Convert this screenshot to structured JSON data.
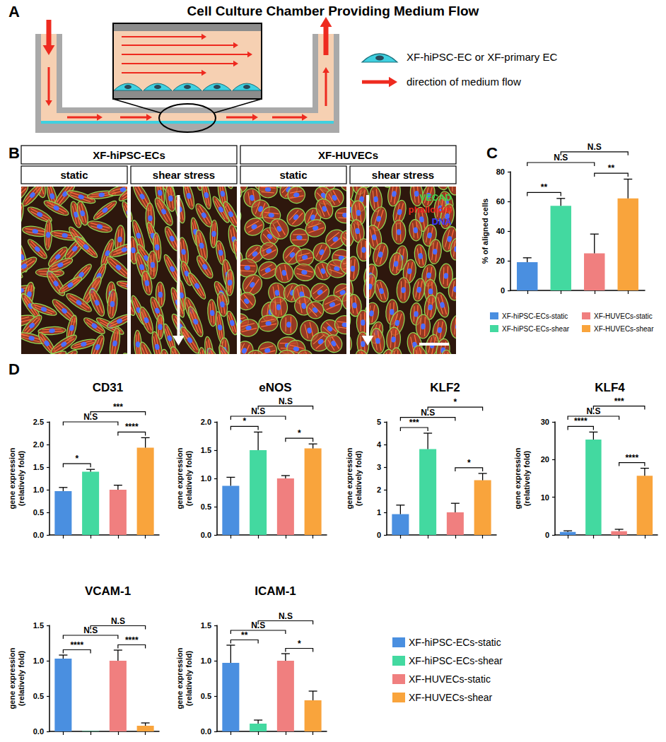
{
  "panels": {
    "A": {
      "label": "A",
      "title": "Cell Culture Chamber Providing Medium Flow",
      "key": [
        "XF-hiPSC-EC or XF-primary EC",
        "direction of medium flow"
      ]
    },
    "B": {
      "label": "B",
      "groups": [
        {
          "name": "XF-hiPSC-ECs",
          "conditions": [
            "static",
            "shear stress"
          ]
        },
        {
          "name": "XF-HUVECs",
          "conditions": [
            "static",
            "shear stress"
          ]
        }
      ],
      "stains": [
        {
          "name": "VECAD",
          "color": "#3cd24a"
        },
        {
          "name": "phalloidin",
          "color": "#e8231e"
        },
        {
          "name": "DNA",
          "color": "#3a3aff"
        }
      ]
    },
    "C": {
      "label": "C"
    },
    "D": {
      "label": "D"
    }
  },
  "chart_data": [
    {
      "type": "bar",
      "y_label": "% of aligned cells",
      "categories": [
        "XF-hiPSC-ECs-static",
        "XF-hiPSC-ECs-shear",
        "XF-HUVECs-static",
        "XF-HUVECs-shear"
      ],
      "values": [
        19,
        57,
        25,
        62
      ],
      "errors": [
        3,
        5,
        13,
        13
      ],
      "colors": [
        "#4a8fe0",
        "#43d9a0",
        "#f07f7f",
        "#f9a43c"
      ],
      "ylim": [
        0,
        80
      ],
      "yticks": [
        0,
        20,
        40,
        60,
        80
      ],
      "grid": false,
      "tick_labels": "y",
      "legend": "bottom",
      "significance": [
        {
          "between": [
            0,
            1
          ],
          "label": "**"
        },
        {
          "between": [
            2,
            3
          ],
          "label": "**"
        },
        {
          "between": [
            0,
            2
          ],
          "label": "N.S"
        },
        {
          "between": [
            1,
            3
          ],
          "label": "N.S"
        }
      ]
    },
    {
      "type": "bar",
      "title": "CD31",
      "y_label": "gene expression\n(relatively fold)",
      "categories": [
        "XF-hiPSC-ECs-static",
        "XF-hiPSC-ECs-shear",
        "XF-HUVECs-static",
        "XF-HUVECs-shear"
      ],
      "values": [
        0.97,
        1.4,
        1.0,
        1.93
      ],
      "errors": [
        0.08,
        0.05,
        0.1,
        0.22
      ],
      "colors": [
        "#4a8fe0",
        "#43d9a0",
        "#f07f7f",
        "#f9a43c"
      ],
      "ylim": [
        0,
        2.5
      ],
      "yticks": [
        {
          "value": 0,
          "label": "0.0"
        },
        0.5,
        {
          "value": 1,
          "label": "1.0"
        },
        1.5,
        {
          "value": 2,
          "label": "2.0"
        },
        2.5
      ],
      "grid": false,
      "tick_labels": "y",
      "significance": [
        {
          "between": [
            0,
            1
          ],
          "label": "*"
        },
        {
          "between": [
            2,
            3
          ],
          "label": "****"
        },
        {
          "between": [
            0,
            2
          ],
          "label": "N.S"
        },
        {
          "between": [
            1,
            3
          ],
          "label": "***"
        }
      ]
    },
    {
      "type": "bar",
      "title": "eNOS",
      "y_label": "gene expression\n(relatively fold)",
      "categories": [
        "XF-hiPSC-ECs-static",
        "XF-hiPSC-ECs-shear",
        "XF-HUVECs-static",
        "XF-HUVECs-shear"
      ],
      "values": [
        0.87,
        1.5,
        1.0,
        1.53
      ],
      "errors": [
        0.15,
        0.32,
        0.05,
        0.08
      ],
      "colors": [
        "#4a8fe0",
        "#43d9a0",
        "#f07f7f",
        "#f9a43c"
      ],
      "ylim": [
        0,
        2
      ],
      "yticks": [
        {
          "value": 0,
          "label": "0.0"
        },
        0.5,
        {
          "value": 1,
          "label": "1.0"
        },
        1.5,
        {
          "value": 2,
          "label": "2.0"
        }
      ],
      "grid": false,
      "tick_labels": "y",
      "significance": [
        {
          "between": [
            0,
            1
          ],
          "label": "*"
        },
        {
          "between": [
            2,
            3
          ],
          "label": "*"
        },
        {
          "between": [
            0,
            2
          ],
          "label": "N.S"
        },
        {
          "between": [
            1,
            3
          ],
          "label": "N.S"
        }
      ]
    },
    {
      "type": "bar",
      "title": "KLF2",
      "y_label": "gene expression\n(relatively fold)",
      "categories": [
        "XF-hiPSC-ECs-static",
        "XF-hiPSC-ECs-shear",
        "XF-HUVECs-static",
        "XF-HUVECs-shear"
      ],
      "values": [
        0.92,
        3.8,
        1.0,
        2.42
      ],
      "errors": [
        0.4,
        0.7,
        0.4,
        0.3
      ],
      "colors": [
        "#4a8fe0",
        "#43d9a0",
        "#f07f7f",
        "#f9a43c"
      ],
      "ylim": [
        0,
        5
      ],
      "yticks": [
        0,
        1,
        2,
        3,
        4,
        5
      ],
      "grid": false,
      "tick_labels": "y",
      "significance": [
        {
          "between": [
            0,
            1
          ],
          "label": "***"
        },
        {
          "between": [
            2,
            3
          ],
          "label": "*"
        },
        {
          "between": [
            0,
            2
          ],
          "label": "N.S"
        },
        {
          "between": [
            1,
            3
          ],
          "label": "*"
        }
      ]
    },
    {
      "type": "bar",
      "title": "KLF4",
      "y_label": "gene expression\n(relatively fold)",
      "categories": [
        "XF-hiPSC-ECs-static",
        "XF-hiPSC-ECs-shear",
        "XF-HUVECs-static",
        "XF-HUVECs-shear"
      ],
      "values": [
        0.8,
        25.3,
        1.0,
        15.7
      ],
      "errors": [
        0.3,
        2,
        0.5,
        2
      ],
      "colors": [
        "#4a8fe0",
        "#43d9a0",
        "#f07f7f",
        "#f9a43c"
      ],
      "ylim": [
        0,
        30
      ],
      "yticks": [
        0,
        10,
        20,
        30
      ],
      "grid": false,
      "tick_labels": "y",
      "significance": [
        {
          "between": [
            0,
            1
          ],
          "label": "****"
        },
        {
          "between": [
            2,
            3
          ],
          "label": "****"
        },
        {
          "between": [
            0,
            2
          ],
          "label": "N.S"
        },
        {
          "between": [
            1,
            3
          ],
          "label": "***"
        }
      ]
    },
    {
      "type": "bar",
      "title": "VCAM-1",
      "y_label": "gene expression\n(relatively fold)",
      "categories": [
        "XF-hiPSC-ECs-static",
        "XF-hiPSC-ECs-shear",
        "XF-HUVECs-static",
        "XF-HUVECs-shear"
      ],
      "values": [
        1.03,
        0.005,
        1.0,
        0.08
      ],
      "errors": [
        0.05,
        0,
        0.15,
        0.04
      ],
      "colors": [
        "#4a8fe0",
        "#43d9a0",
        "#f07f7f",
        "#f9a43c"
      ],
      "ylim": [
        0,
        1.5
      ],
      "yticks": [
        {
          "value": 0,
          "label": "0.0"
        },
        0.5,
        {
          "value": 1,
          "label": "1.0"
        },
        1.5
      ],
      "grid": false,
      "tick_labels": "y",
      "significance": [
        {
          "between": [
            0,
            1
          ],
          "label": "****"
        },
        {
          "between": [
            2,
            3
          ],
          "label": "****"
        },
        {
          "between": [
            0,
            2
          ],
          "label": "N.S"
        },
        {
          "between": [
            1,
            3
          ],
          "label": "N.S"
        }
      ]
    },
    {
      "type": "bar",
      "title": "ICAM-1",
      "y_label": "gene expression\n(relatively fold)",
      "categories": [
        "XF-hiPSC-ECs-static",
        "XF-hiPSC-ECs-shear",
        "XF-HUVECs-static",
        "XF-HUVECs-shear"
      ],
      "values": [
        0.97,
        0.11,
        1.0,
        0.44
      ],
      "errors": [
        0.25,
        0.05,
        0.1,
        0.13
      ],
      "colors": [
        "#4a8fe0",
        "#43d9a0",
        "#f07f7f",
        "#f9a43c"
      ],
      "ylim": [
        0,
        1.5
      ],
      "yticks": [
        {
          "value": 0,
          "label": "0.0"
        },
        0.5,
        {
          "value": 1,
          "label": "1.0"
        },
        1.5
      ],
      "grid": false,
      "tick_labels": "y",
      "legend": "right",
      "significance": [
        {
          "between": [
            0,
            1
          ],
          "label": "**"
        },
        {
          "between": [
            2,
            3
          ],
          "label": "*"
        },
        {
          "between": [
            0,
            2
          ],
          "label": "N.S"
        },
        {
          "between": [
            1,
            3
          ],
          "label": "N.S"
        }
      ]
    }
  ]
}
